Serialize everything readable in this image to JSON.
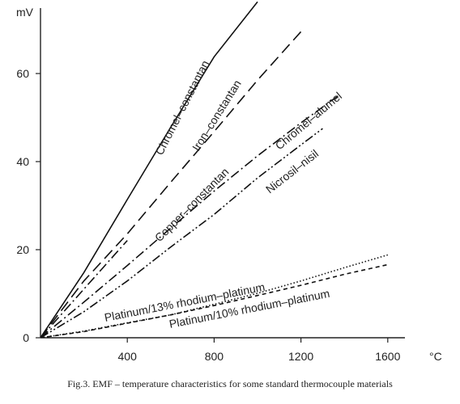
{
  "caption": "Fig.3. EMF – temperature characteristics for some standard thermocouple materials",
  "chart_data": {
    "type": "line",
    "title": "",
    "xlabel": "°C",
    "ylabel": "mV",
    "xlim": [
      0,
      1700
    ],
    "ylim": [
      0,
      75
    ],
    "x_ticks": [
      400,
      800,
      1200,
      1600
    ],
    "y_ticks": [
      0,
      20,
      40,
      60
    ],
    "grid": false,
    "series": [
      {
        "name": "Chromel–constantan",
        "style": "solid",
        "x": [
          0,
          200,
          400,
          600,
          800,
          1000
        ],
        "y": [
          0,
          14.8,
          31.4,
          47.8,
          63.8,
          76.3
        ]
      },
      {
        "name": "Iron–constantan",
        "style": "dashed",
        "x": [
          0,
          200,
          400,
          600,
          800,
          1000,
          1200
        ],
        "y": [
          0,
          12.9,
          23.6,
          35.3,
          46.8,
          58.5,
          69.5
        ]
      },
      {
        "name": "Copper–constantan",
        "style": "dashdot",
        "x": [
          0,
          400
        ],
        "y": [
          0,
          22.1
        ]
      },
      {
        "name": "Chromel–alumel",
        "style": "dashdot",
        "x": [
          0,
          200,
          400,
          600,
          800,
          1000,
          1200,
          1370
        ],
        "y": [
          0,
          8.1,
          16.4,
          24.9,
          33.3,
          41.3,
          48.8,
          54.9
        ]
      },
      {
        "name": "Nicrosil–nisil",
        "style": "dashdotdot",
        "x": [
          0,
          200,
          400,
          600,
          800,
          1000,
          1200,
          1300
        ],
        "y": [
          0,
          5.9,
          12.9,
          20.6,
          28.0,
          36.3,
          43.8,
          47.5
        ]
      },
      {
        "name": "Platinum/13% rhodium–platinum",
        "style": "dotted",
        "x": [
          0,
          200,
          400,
          600,
          800,
          1000,
          1200,
          1400,
          1600
        ],
        "y": [
          0,
          1.5,
          3.4,
          5.2,
          7.6,
          10.1,
          12.9,
          15.9,
          18.8
        ]
      },
      {
        "name": "Platinum/10% rhodium–platinum",
        "style": "dashed-short",
        "x": [
          0,
          200,
          400,
          600,
          800,
          1000,
          1200,
          1400,
          1600
        ],
        "y": [
          0,
          1.4,
          3.3,
          5.2,
          7.3,
          9.6,
          11.9,
          14.4,
          16.6
        ]
      }
    ]
  }
}
